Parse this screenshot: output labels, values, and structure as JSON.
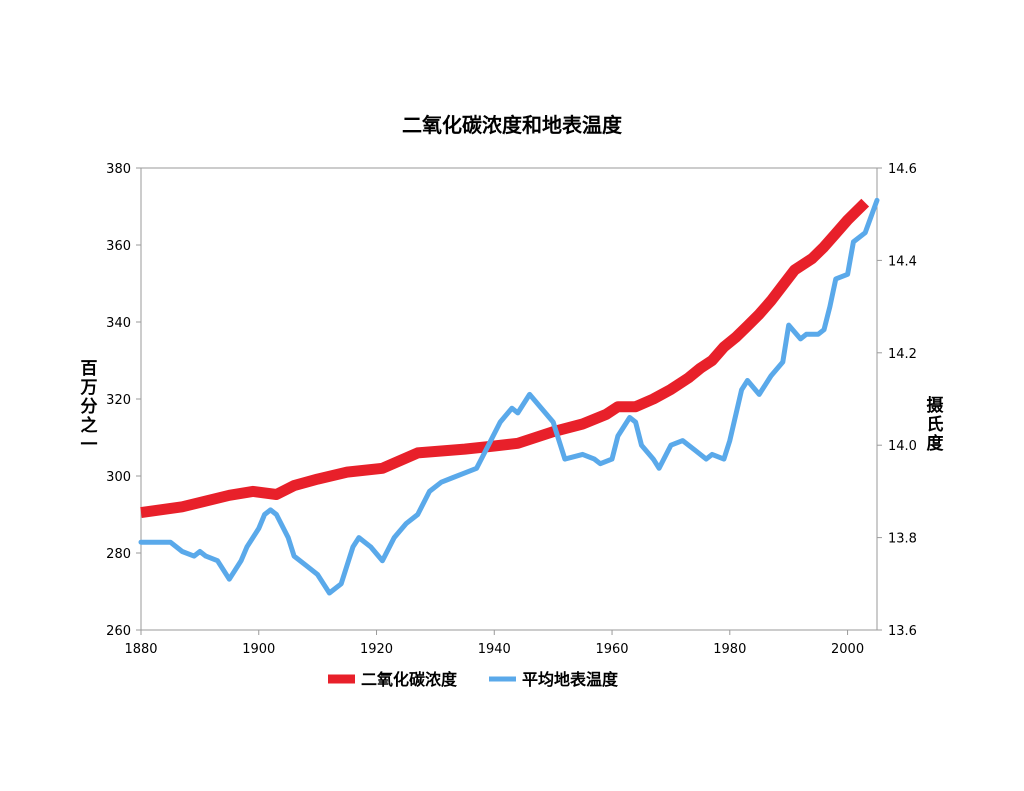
{
  "chart_data": {
    "type": "line",
    "title": "二氧化碳浓度和地表温度",
    "xlim": [
      1880,
      2005
    ],
    "x_ticks": [
      1880,
      1900,
      1920,
      1940,
      1960,
      1980,
      2000
    ],
    "y_left": {
      "label_chars": [
        "百",
        "万",
        "分",
        "之",
        "一"
      ],
      "ylim": [
        260,
        380
      ],
      "ticks": [
        260,
        280,
        300,
        320,
        340,
        360,
        380
      ]
    },
    "y_right": {
      "label_chars": [
        "摄",
        "氏",
        "度"
      ],
      "ylim": [
        13.6,
        14.6
      ],
      "ticks": [
        "13.6",
        "13.8",
        "14.0",
        "14.2",
        "14.4",
        "14.6"
      ]
    },
    "legend_position": "bottom",
    "series": [
      {
        "name": "二氧化碳浓度",
        "axis": "left",
        "color": "#e8202a",
        "points": [
          [
            1880,
            290.5
          ],
          [
            1887,
            292
          ],
          [
            1895,
            295
          ],
          [
            1899,
            296
          ],
          [
            1903,
            295.2
          ],
          [
            1906,
            297.5
          ],
          [
            1910,
            299.2
          ],
          [
            1915,
            301
          ],
          [
            1921,
            302
          ],
          [
            1927,
            306
          ],
          [
            1935,
            307
          ],
          [
            1940,
            307.8
          ],
          [
            1944,
            308.5
          ],
          [
            1950,
            311.5
          ],
          [
            1955,
            313.5
          ],
          [
            1959,
            316
          ],
          [
            1961,
            318
          ],
          [
            1964,
            318
          ],
          [
            1967,
            320
          ],
          [
            1970,
            322.5
          ],
          [
            1973,
            325.5
          ],
          [
            1975,
            328
          ],
          [
            1977,
            330
          ],
          [
            1979,
            333.5
          ],
          [
            1981,
            336
          ],
          [
            1983,
            339
          ],
          [
            1985,
            342
          ],
          [
            1987,
            345.5
          ],
          [
            1989,
            349.5
          ],
          [
            1991,
            353.5
          ],
          [
            1994,
            356.5
          ],
          [
            1996,
            359.5
          ],
          [
            1998,
            363
          ],
          [
            2000,
            366.5
          ],
          [
            2003,
            371
          ]
        ]
      },
      {
        "name": "平均地表温度",
        "axis": "right",
        "color": "#5aa9ea",
        "points": [
          [
            1880,
            13.79
          ],
          [
            1885,
            13.79
          ],
          [
            1887,
            13.77
          ],
          [
            1889,
            13.76
          ],
          [
            1890,
            13.77
          ],
          [
            1891,
            13.76
          ],
          [
            1893,
            13.75
          ],
          [
            1895,
            13.71
          ],
          [
            1897,
            13.75
          ],
          [
            1898,
            13.78
          ],
          [
            1900,
            13.82
          ],
          [
            1901,
            13.85
          ],
          [
            1902,
            13.86
          ],
          [
            1903,
            13.85
          ],
          [
            1905,
            13.8
          ],
          [
            1906,
            13.76
          ],
          [
            1908,
            13.74
          ],
          [
            1910,
            13.72
          ],
          [
            1911,
            13.7
          ],
          [
            1912,
            13.68
          ],
          [
            1914,
            13.7
          ],
          [
            1916,
            13.78
          ],
          [
            1917,
            13.8
          ],
          [
            1919,
            13.78
          ],
          [
            1921,
            13.75
          ],
          [
            1923,
            13.8
          ],
          [
            1925,
            13.83
          ],
          [
            1927,
            13.85
          ],
          [
            1929,
            13.9
          ],
          [
            1931,
            13.92
          ],
          [
            1933,
            13.93
          ],
          [
            1935,
            13.94
          ],
          [
            1937,
            13.95
          ],
          [
            1939,
            14.0
          ],
          [
            1941,
            14.05
          ],
          [
            1943,
            14.08
          ],
          [
            1944,
            14.07
          ],
          [
            1946,
            14.11
          ],
          [
            1948,
            14.08
          ],
          [
            1950,
            14.05
          ],
          [
            1951,
            14.01
          ],
          [
            1952,
            13.97
          ],
          [
            1955,
            13.98
          ],
          [
            1957,
            13.97
          ],
          [
            1958,
            13.96
          ],
          [
            1960,
            13.97
          ],
          [
            1961,
            14.02
          ],
          [
            1963,
            14.06
          ],
          [
            1964,
            14.05
          ],
          [
            1965,
            14.0
          ],
          [
            1967,
            13.97
          ],
          [
            1968,
            13.95
          ],
          [
            1970,
            14.0
          ],
          [
            1972,
            14.01
          ],
          [
            1974,
            13.99
          ],
          [
            1976,
            13.97
          ],
          [
            1977,
            13.98
          ],
          [
            1979,
            13.97
          ],
          [
            1980,
            14.01
          ],
          [
            1982,
            14.12
          ],
          [
            1983,
            14.14
          ],
          [
            1985,
            14.11
          ],
          [
            1987,
            14.15
          ],
          [
            1989,
            14.18
          ],
          [
            1990,
            14.26
          ],
          [
            1992,
            14.23
          ],
          [
            1993,
            14.24
          ],
          [
            1995,
            14.24
          ],
          [
            1996,
            14.25
          ],
          [
            1997,
            14.3
          ],
          [
            1998,
            14.36
          ],
          [
            2000,
            14.37
          ],
          [
            2001,
            14.44
          ],
          [
            2003,
            14.46
          ],
          [
            2005,
            14.53
          ]
        ]
      }
    ]
  }
}
